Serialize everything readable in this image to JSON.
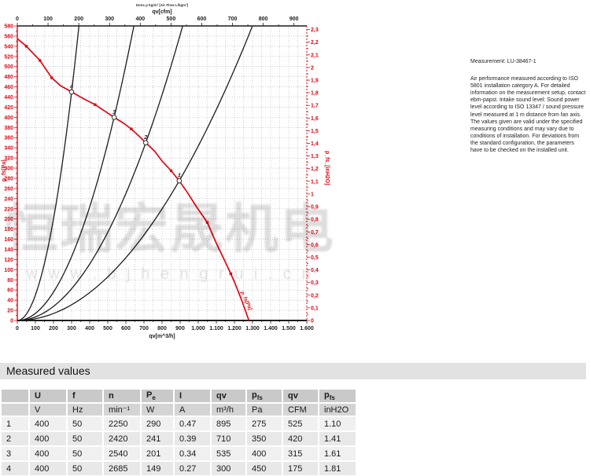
{
  "colors": {
    "red": "#e30613",
    "black": "#1c1c1c",
    "grid": "#adadad",
    "band_bg": "#e2e2e2",
    "header_bg": "#c9c9c9",
    "units_bg": "#d4d4d4"
  },
  "chart_data": {
    "type": "line",
    "tiny_header": "Dens ρ kg/m³ [Air Flow L/kgm³]",
    "top_axis": {
      "label": "qv[cfm]",
      "min": 0,
      "max_label": 900,
      "step": 100,
      "cfm_per_m3h": 0.588578
    },
    "bottom_axis": {
      "label": "qv[m^3/h]",
      "min": 0,
      "max": 1600,
      "step": 100,
      "tick_labels": [
        "0",
        "100",
        "200",
        "300",
        "400",
        "500",
        "600",
        "700",
        "800",
        "900",
        "1.000",
        "1.100",
        "1.200",
        "1.300",
        "1.400",
        "1.500",
        "1.600"
      ]
    },
    "left_axis": {
      "label": "p_fs[Pa]",
      "min": 0,
      "max": 580,
      "step": 20
    },
    "right_axis": {
      "label": "p_fs_[inH2O]",
      "min": 0,
      "max": 2.3,
      "step": 0.1,
      "pa_per_inh2o": 249.089
    },
    "fan_curve": {
      "name": "fan-pressure-curve",
      "points": [
        [
          0,
          555
        ],
        [
          50,
          540
        ],
        [
          125,
          512
        ],
        [
          190,
          478
        ],
        [
          240,
          462
        ],
        [
          300,
          450
        ],
        [
          370,
          436
        ],
        [
          430,
          425
        ],
        [
          480,
          413
        ],
        [
          535,
          400
        ],
        [
          585,
          389
        ],
        [
          630,
          377
        ],
        [
          670,
          364
        ],
        [
          710,
          350
        ],
        [
          760,
          333
        ],
        [
          800,
          314
        ],
        [
          850,
          295
        ],
        [
          895,
          275
        ],
        [
          940,
          252
        ],
        [
          990,
          224
        ],
        [
          1050,
          193
        ],
        [
          1100,
          152
        ],
        [
          1150,
          115
        ],
        [
          1180,
          92
        ],
        [
          1200,
          76
        ],
        [
          1240,
          40
        ],
        [
          1280,
          0
        ]
      ],
      "markers": [
        [
          50,
          540
        ],
        [
          125,
          512
        ],
        [
          190,
          478
        ],
        [
          300,
          450
        ],
        [
          430,
          425
        ],
        [
          535,
          400
        ],
        [
          630,
          377
        ],
        [
          710,
          350
        ],
        [
          850,
          295
        ],
        [
          1050,
          193
        ],
        [
          1180,
          92
        ]
      ],
      "annotation": "p_fs[Pa]"
    },
    "operating_points": [
      {
        "label": "1",
        "qv": 895,
        "pfs": 275
      },
      {
        "label": "2",
        "qv": 710,
        "pfs": 350
      },
      {
        "label": "3",
        "qv": 535,
        "pfs": 400
      },
      {
        "label": "4",
        "qv": 300,
        "pfs": 450
      }
    ]
  },
  "watermark": {
    "cjk": "恒瑞宏晟机电",
    "url": "w w w . b j h e n g r u i . c n"
  },
  "measurement_panel": {
    "title": "Measurement: LU-38467-1",
    "body": "Air performance measured according to ISO 5801 installation category A. For detailed information on the measurement setup, contact ebm-papst. Intake sound level: Sound power level according to ISO 13347 / sound pressure level measured at 1 m distance from fan axis. The values given are valid under the specified measuring conditions and may vary due to conditions of installation. For deviations from the standard configuration, the parameters have to be checked on the installed unit."
  },
  "table": {
    "section_title": "Measured values",
    "headers": [
      {
        "t": ""
      },
      {
        "t": "U"
      },
      {
        "t": "f"
      },
      {
        "t": "n"
      },
      {
        "t": "P",
        "sub": "e"
      },
      {
        "t": "I"
      },
      {
        "t": "qv"
      },
      {
        "t": "p",
        "sub": "fs"
      },
      {
        "t": "qv"
      },
      {
        "t": "p",
        "sub": "fs"
      }
    ],
    "units": [
      "",
      "V",
      "Hz",
      "min⁻¹",
      "W",
      "A",
      "m³/h",
      "Pa",
      "CFM",
      "inH2O"
    ],
    "rows": [
      [
        "1",
        "400",
        "50",
        "2250",
        "290",
        "0.47",
        "895",
        "275",
        "525",
        "1.10"
      ],
      [
        "2",
        "400",
        "50",
        "2420",
        "241",
        "0.39",
        "710",
        "350",
        "420",
        "1.41"
      ],
      [
        "3",
        "400",
        "50",
        "2540",
        "201",
        "0.34",
        "535",
        "400",
        "315",
        "1.61"
      ],
      [
        "4",
        "400",
        "50",
        "2685",
        "149",
        "0.27",
        "300",
        "450",
        "175",
        "1.81"
      ]
    ]
  }
}
